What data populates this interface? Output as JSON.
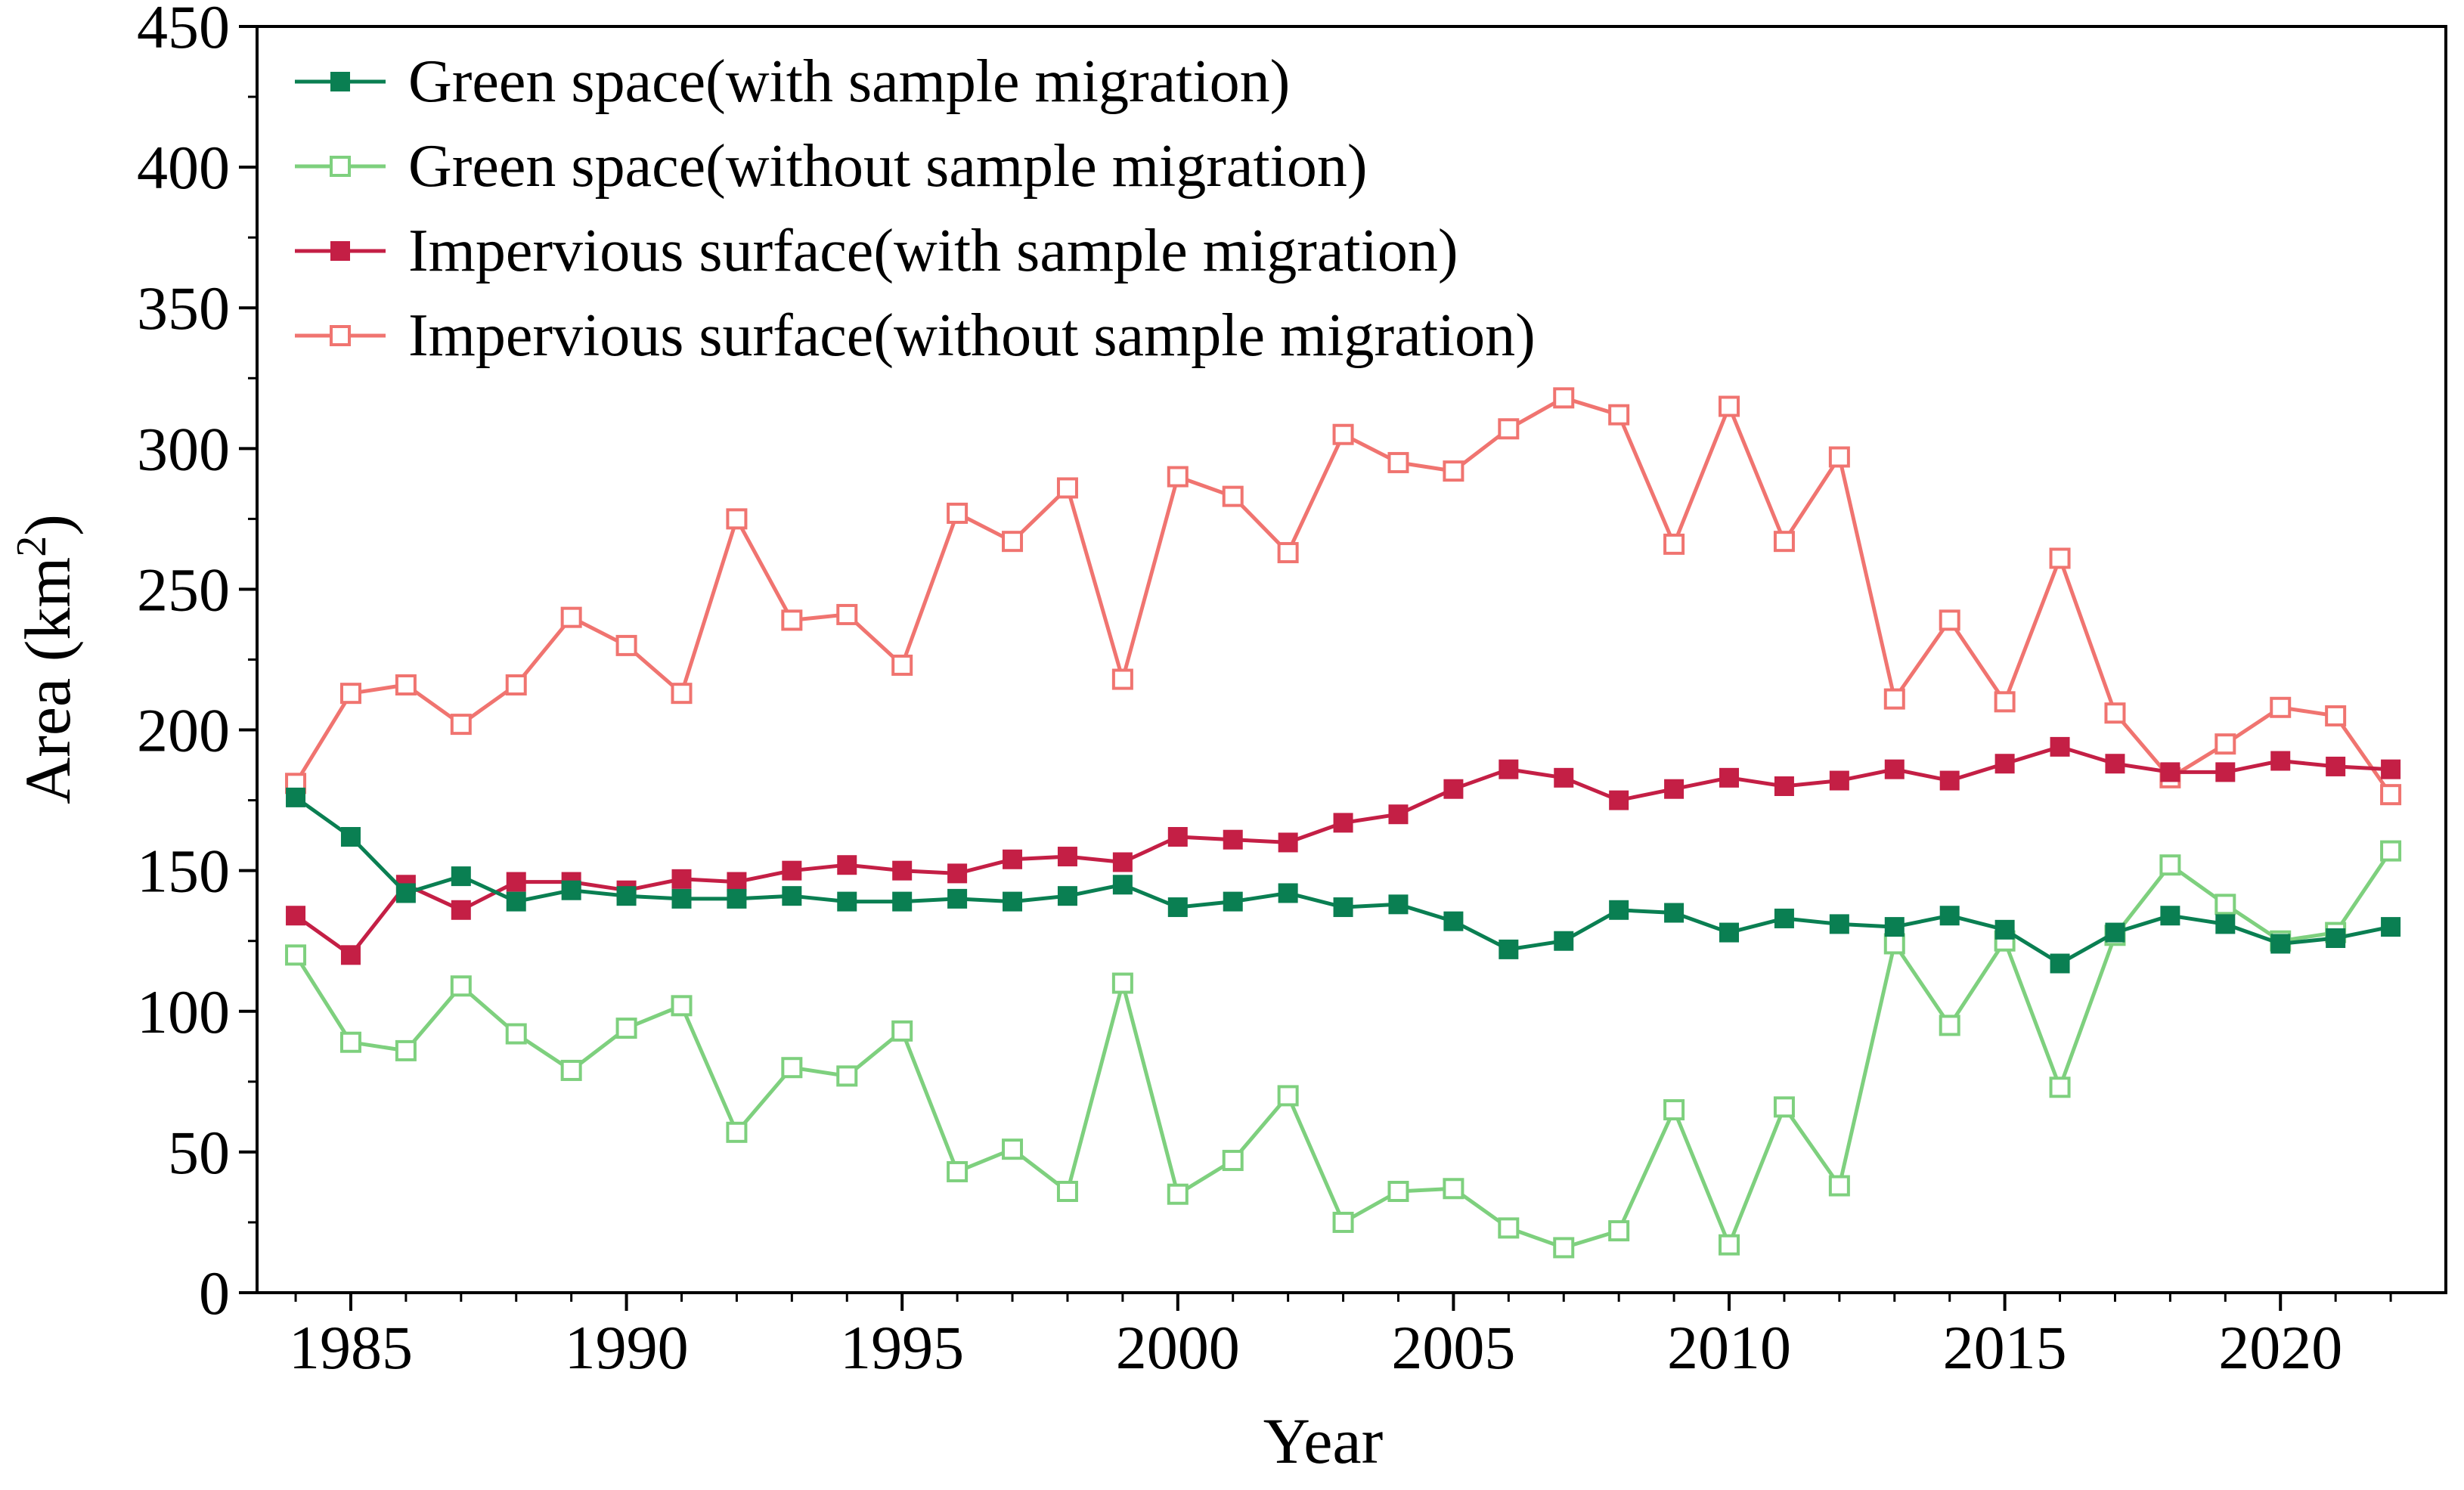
{
  "chart_data": {
    "type": "line",
    "xlabel": "Year",
    "ylabel": "Area (km",
    "ylabel_sup": "2",
    "ylabel_suffix": ")",
    "xlim": [
      1983.3,
      2023.0
    ],
    "ylim": [
      0,
      450
    ],
    "xticks": [
      1985,
      1990,
      1995,
      2000,
      2005,
      2010,
      2015,
      2020
    ],
    "xtick_labels": [
      "1985",
      "1990",
      "1995",
      "2000",
      "2005",
      "2010",
      "2015",
      "2020"
    ],
    "yticks": [
      0,
      50,
      100,
      150,
      200,
      250,
      300,
      350,
      400,
      450
    ],
    "ytick_labels": [
      "0",
      "50",
      "100",
      "150",
      "200",
      "250",
      "300",
      "350",
      "400",
      "450"
    ],
    "legend_position": "top-left",
    "x": [
      1984,
      1985,
      1986,
      1987,
      1988,
      1989,
      1990,
      1991,
      1992,
      1993,
      1994,
      1995,
      1996,
      1997,
      1998,
      1999,
      2000,
      2001,
      2002,
      2003,
      2004,
      2005,
      2006,
      2007,
      2008,
      2009,
      2010,
      2011,
      2012,
      2013,
      2014,
      2015,
      2016,
      2017,
      2018,
      2019,
      2020,
      2021,
      2022
    ],
    "series": [
      {
        "name": "Green space(with sample migration)",
        "color": "#0a7f52",
        "marker": "filled-square",
        "values": [
          176,
          162,
          142,
          148,
          139,
          143,
          141,
          140,
          140,
          141,
          139,
          139,
          140,
          139,
          141,
          145,
          137,
          139,
          142,
          137,
          138,
          132,
          122,
          125,
          136,
          135,
          128,
          133,
          131,
          130,
          134,
          129,
          117,
          128,
          134,
          131,
          124,
          126,
          130
        ]
      },
      {
        "name": "Green space(without sample migration)",
        "color": "#7ed07e",
        "marker": "open-square",
        "values": [
          120,
          89,
          86,
          109,
          92,
          79,
          94,
          102,
          57,
          80,
          77,
          93,
          43,
          51,
          36,
          110,
          35,
          47,
          70,
          25,
          36,
          37,
          23,
          16,
          22,
          65,
          17,
          66,
          38,
          124,
          95,
          125,
          73,
          127,
          152,
          138,
          125,
          128,
          157
        ]
      },
      {
        "name": "Impervious surface(with sample migration)",
        "color": "#c41f45",
        "marker": "filled-square",
        "values": [
          134,
          120,
          145,
          136,
          146,
          146,
          143,
          147,
          146,
          150,
          152,
          150,
          149,
          154,
          155,
          153,
          162,
          161,
          160,
          167,
          170,
          179,
          186,
          183,
          175,
          179,
          183,
          180,
          182,
          186,
          182,
          188,
          194,
          188,
          185,
          185,
          189,
          187,
          186
        ]
      },
      {
        "name": "Impervious surface(without sample migration)",
        "color": "#f07470",
        "marker": "open-square",
        "values": [
          181,
          213,
          216,
          202,
          216,
          240,
          230,
          213,
          275,
          239,
          241,
          223,
          277,
          267,
          286,
          218,
          290,
          283,
          263,
          305,
          295,
          292,
          307,
          318,
          312,
          266,
          315,
          267,
          297,
          211,
          239,
          210,
          261,
          206,
          183,
          195,
          208,
          205,
          177
        ]
      }
    ]
  }
}
